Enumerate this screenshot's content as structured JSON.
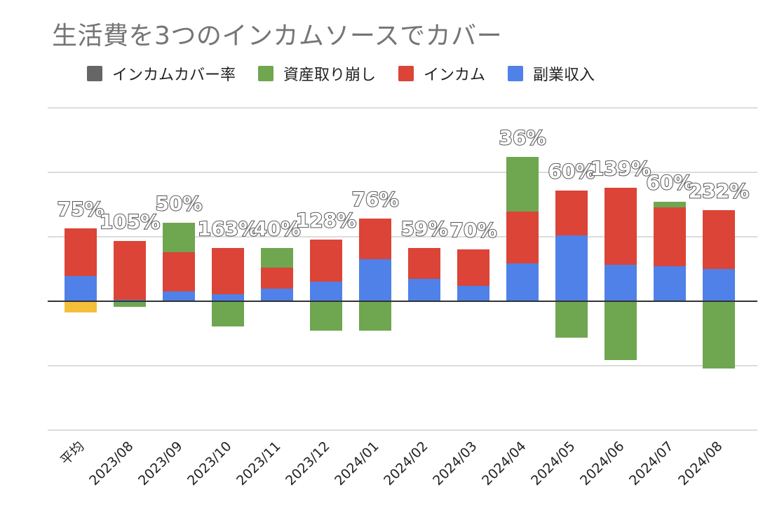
{
  "chart_data": {
    "type": "bar",
    "title": "生活費を3つのインカムソースでカバー",
    "legend_position": "top-left",
    "grid": true,
    "categories": [
      "平均",
      "2023/08",
      "2023/09",
      "2023/10",
      "2023/11",
      "2023/12",
      "2024/01",
      "2024/02",
      "2024/03",
      "2024/04",
      "2024/05",
      "2024/06",
      "2024/07",
      "2024/08"
    ],
    "series": [
      {
        "name": "副業収入",
        "color": "#4f81e9",
        "values": [
          36,
          2,
          14,
          10,
          18,
          28,
          60,
          32,
          22,
          54,
          94,
          52,
          50,
          46
        ]
      },
      {
        "name": "インカム",
        "color": "#db4437",
        "values": [
          68,
          84,
          56,
          66,
          30,
          60,
          58,
          44,
          52,
          74,
          64,
          110,
          84,
          84
        ]
      },
      {
        "name": "資産取り崩し",
        "color": "#6fa650",
        "values": [
          0,
          -8,
          42,
          -36,
          28,
          -42,
          -42,
          0,
          0,
          78,
          -52,
          -84,
          8,
          -96
        ]
      },
      {
        "name": "インカムカバー率",
        "color": "#666666",
        "labels": [
          "75%",
          "105%",
          "50%",
          "163%",
          "40%",
          "128%",
          "76%",
          "59%",
          "70%",
          "36%",
          "60%",
          "139%",
          "60%",
          "232%"
        ]
      }
    ],
    "extra_negative": [
      {
        "category": "平均",
        "color": "#f6bf3a",
        "value": -16
      }
    ],
    "ylim": [
      -184,
      276
    ],
    "gridline_step": 92
  }
}
